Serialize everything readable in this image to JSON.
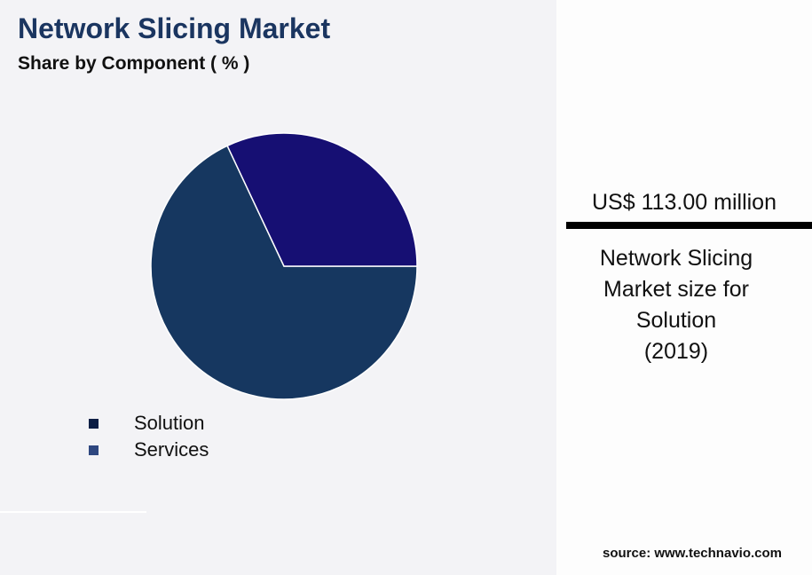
{
  "title": "Network Slicing Market",
  "subtitle": "Share by Component ( % )",
  "chart_data": {
    "type": "pie",
    "title": "Network Slicing Market",
    "subtitle": "Share by Component ( % )",
    "categories": [
      "Solution",
      "Services"
    ],
    "values": [
      68,
      32
    ],
    "colors": [
      "#163760",
      "#160f73"
    ],
    "legend_colors": [
      "#0d1f45",
      "#2e4780"
    ],
    "legend_placement": "bottom-left"
  },
  "panel": {
    "value": "US$ 113.00 million",
    "desc_lines": [
      "Network Slicing",
      "Market size for",
      "Solution",
      "(2019)"
    ],
    "source": "source: www.technavio.com"
  }
}
